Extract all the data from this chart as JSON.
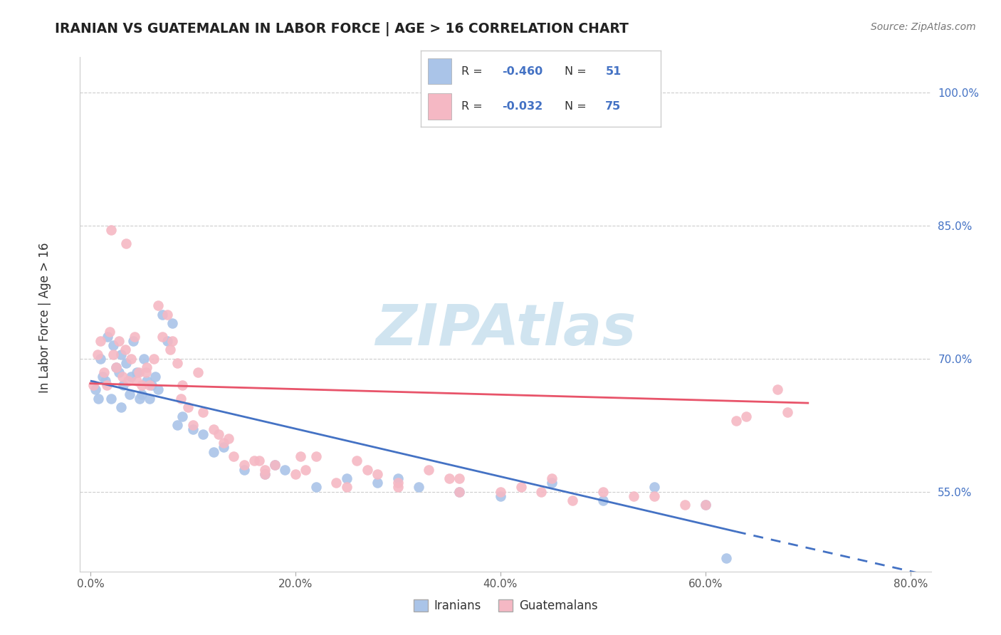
{
  "title": "IRANIAN VS GUATEMALAN IN LABOR FORCE | AGE > 16 CORRELATION CHART",
  "source": "Source: ZipAtlas.com",
  "ylabel": "In Labor Force | Age > 16",
  "x_tick_labels": [
    "0.0%",
    "20.0%",
    "40.0%",
    "60.0%",
    "80.0%"
  ],
  "x_tick_values": [
    0.0,
    20.0,
    40.0,
    60.0,
    80.0
  ],
  "y_tick_labels": [
    "55.0%",
    "70.0%",
    "85.0%",
    "100.0%"
  ],
  "y_tick_values": [
    55.0,
    70.0,
    85.0,
    100.0
  ],
  "xlim": [
    -1,
    82
  ],
  "ylim": [
    46,
    104
  ],
  "legend_label_1": "Iranians",
  "legend_label_2": "Guatemalans",
  "iranian_color": "#aac4e8",
  "guatemalan_color": "#f5b8c4",
  "iranian_line_color": "#4472c4",
  "guatemalan_line_color": "#e8546a",
  "watermark_color": "#d0e4f0",
  "background_color": "#ffffff",
  "grid_color": "#cccccc",
  "iranians_x": [
    0.5,
    0.8,
    1.0,
    1.2,
    1.5,
    1.7,
    2.0,
    2.2,
    2.5,
    2.8,
    3.0,
    3.2,
    3.5,
    3.8,
    4.0,
    4.2,
    4.5,
    4.8,
    5.0,
    5.2,
    5.5,
    5.8,
    6.0,
    6.3,
    6.6,
    7.0,
    7.5,
    8.0,
    9.0,
    10.0,
    11.0,
    13.0,
    15.0,
    17.0,
    19.0,
    22.0,
    25.0,
    28.0,
    32.0,
    36.0,
    40.0,
    45.0,
    50.0,
    55.0,
    60.0,
    3.0,
    8.5,
    12.0,
    18.0,
    30.0,
    62.0
  ],
  "iranians_y": [
    66.5,
    65.5,
    70.0,
    68.0,
    67.5,
    72.5,
    65.5,
    71.5,
    69.0,
    68.5,
    70.5,
    67.0,
    69.5,
    66.0,
    68.0,
    72.0,
    68.5,
    65.5,
    66.0,
    70.0,
    67.5,
    65.5,
    67.0,
    68.0,
    66.5,
    75.0,
    72.0,
    74.0,
    63.5,
    62.0,
    61.5,
    60.0,
    57.5,
    57.0,
    57.5,
    55.5,
    56.5,
    56.0,
    55.5,
    55.0,
    54.5,
    56.0,
    54.0,
    55.5,
    53.5,
    64.5,
    62.5,
    59.5,
    58.0,
    56.5,
    47.5
  ],
  "guatemalans_x": [
    0.3,
    0.7,
    1.0,
    1.3,
    1.6,
    1.9,
    2.2,
    2.5,
    2.8,
    3.1,
    3.4,
    3.7,
    4.0,
    4.3,
    4.7,
    5.0,
    5.4,
    5.8,
    6.2,
    6.6,
    7.0,
    7.5,
    8.0,
    8.5,
    9.0,
    9.5,
    10.0,
    11.0,
    12.0,
    13.0,
    14.0,
    15.0,
    16.0,
    17.0,
    18.0,
    20.0,
    22.0,
    24.0,
    26.0,
    28.0,
    30.0,
    33.0,
    36.0,
    40.0,
    45.0,
    50.0,
    55.0,
    60.0,
    64.0,
    68.0,
    2.0,
    3.5,
    5.5,
    7.8,
    10.5,
    13.5,
    17.0,
    21.0,
    25.0,
    30.0,
    36.0,
    42.0,
    47.0,
    53.0,
    58.0,
    63.0,
    67.0,
    4.5,
    8.8,
    12.5,
    16.5,
    20.5,
    27.0,
    35.0,
    44.0
  ],
  "guatemalans_y": [
    67.0,
    70.5,
    72.0,
    68.5,
    67.0,
    73.0,
    70.5,
    69.0,
    72.0,
    68.0,
    71.0,
    67.5,
    70.0,
    72.5,
    68.5,
    67.0,
    68.5,
    67.0,
    70.0,
    76.0,
    72.5,
    75.0,
    72.0,
    69.5,
    67.0,
    64.5,
    62.5,
    64.0,
    62.0,
    60.5,
    59.0,
    58.0,
    58.5,
    57.5,
    58.0,
    57.0,
    59.0,
    56.0,
    58.5,
    57.0,
    55.5,
    57.5,
    56.5,
    55.0,
    56.5,
    55.0,
    54.5,
    53.5,
    63.5,
    64.0,
    84.5,
    83.0,
    69.0,
    71.0,
    68.5,
    61.0,
    57.0,
    57.5,
    55.5,
    56.0,
    55.0,
    55.5,
    54.0,
    54.5,
    53.5,
    63.0,
    66.5,
    67.5,
    65.5,
    61.5,
    58.5,
    59.0,
    57.5,
    56.5,
    55.0
  ],
  "iranian_line_x0": 0,
  "iranian_line_x1": 63,
  "iranian_line_y0": 67.5,
  "iranian_line_y1": 50.5,
  "iranian_dash_x0": 63,
  "iranian_dash_x1": 82,
  "iranian_dash_y0": 50.5,
  "iranian_dash_y1": 45.5,
  "guatemalan_line_x0": 0,
  "guatemalan_line_x1": 70,
  "guatemalan_line_y0": 67.2,
  "guatemalan_line_y1": 65.0
}
